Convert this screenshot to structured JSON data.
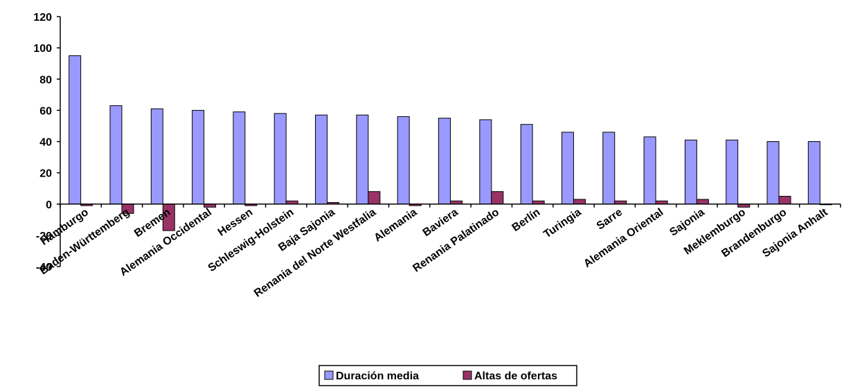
{
  "chart_data": {
    "type": "bar",
    "categories": [
      "Hamburgo",
      "Baden-Württemberg",
      "Bremen",
      "Alemania Occidental",
      "Hessen",
      "Schleswig-Holstein",
      "Baja Sajonia",
      "Renania del Norte Westfalia",
      "Alemania",
      "Baviera",
      "Renania Palatinado",
      "Berlín",
      "Turingia",
      "Sarre",
      "Alemania Oriental",
      "Sajonia",
      "Meklemburgo",
      "Brandenburgo",
      "Sajonia Anhalt"
    ],
    "series": [
      {
        "name": "Duración media",
        "color": "#9999ff",
        "values": [
          95,
          63,
          61,
          60,
          59,
          58,
          57,
          57,
          56,
          55,
          54,
          51,
          46,
          46,
          43,
          41,
          41,
          40,
          40
        ]
      },
      {
        "name": "Altas de ofertas",
        "color": "#993366",
        "values": [
          -1,
          -6,
          -17,
          -2,
          -1,
          2,
          1,
          8,
          -1,
          2,
          8,
          2,
          3,
          2,
          2,
          3,
          -2,
          5,
          0
        ]
      }
    ],
    "yticks": [
      "-40",
      "-20",
      "0",
      "20",
      "40",
      "60",
      "80",
      "100",
      "120"
    ],
    "ylim": [
      -40,
      120
    ],
    "title": "",
    "xlabel": "",
    "ylabel": "",
    "legend": "bottom-center",
    "grid": false
  }
}
